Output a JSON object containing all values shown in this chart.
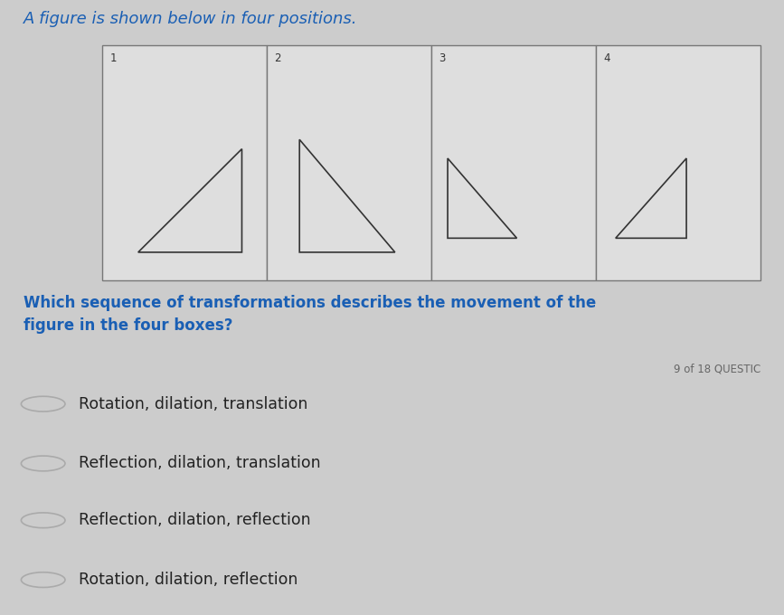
{
  "title_text": "A figure is shown below in four positions.",
  "title_color": "#1a5fb4",
  "bg_color": "#cccccc",
  "bg_bottom_color": "#e8e8e8",
  "question_text": "Which sequence of transformations describes the movement of the\nfigure in the four boxes?",
  "question_color": "#1a5fb4",
  "question_number": "9 of 18 QUESTIC",
  "choices": [
    "Rotation, dilation, translation",
    "Reflection, dilation, translation",
    "Reflection, dilation, reflection",
    "Rotation, dilation, reflection"
  ],
  "box_labels": [
    "1",
    "2",
    "3",
    "4"
  ],
  "box_edge_color": "#777777",
  "box_face_color": "#dedede",
  "triangle_color": "#333333",
  "figure_width": 8.67,
  "figure_height": 6.8,
  "dpi": 100
}
